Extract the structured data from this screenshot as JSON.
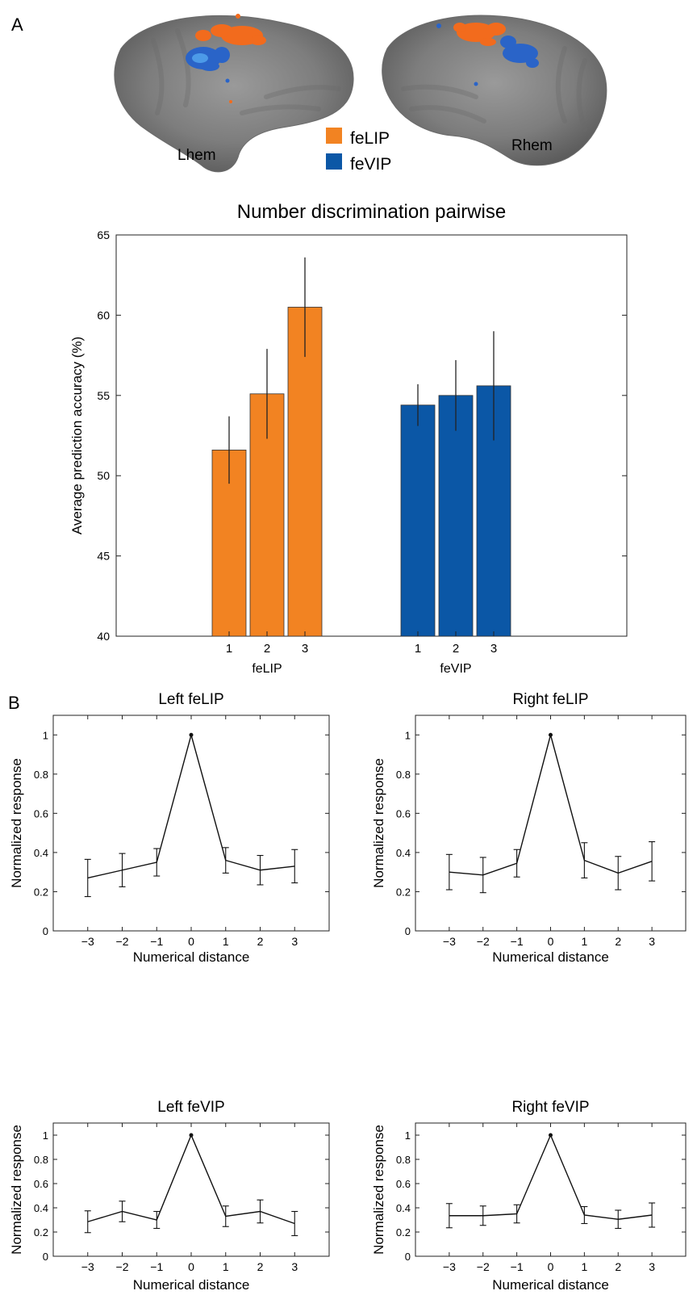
{
  "panels": {
    "a_label": "A",
    "b_label": "B"
  },
  "brain_figure": {
    "left_label": "Lhem",
    "right_label": "Rhem",
    "legend": [
      {
        "label": "feLIP",
        "color": "#f28322"
      },
      {
        "label": "feVIP",
        "color": "#0b57a6"
      }
    ]
  },
  "chart_data": [
    {
      "type": "bar",
      "title": "Number discrimination pairwise",
      "ylabel": "Average prediction accuracy (%)",
      "xlabel": "",
      "ylim": [
        40,
        65
      ],
      "yticks": [
        40,
        45,
        50,
        55,
        60,
        65
      ],
      "grid": false,
      "groups": [
        {
          "name": "feLIP",
          "color": "#f28322",
          "categories": [
            "1",
            "2",
            "3"
          ],
          "values": [
            51.6,
            55.1,
            60.5
          ],
          "error": [
            2.1,
            2.8,
            3.1
          ]
        },
        {
          "name": "feVIP",
          "color": "#0b57a6",
          "categories": [
            "1",
            "2",
            "3"
          ],
          "values": [
            54.4,
            55.0,
            55.6
          ],
          "error": [
            1.3,
            2.2,
            3.4
          ]
        }
      ]
    },
    {
      "type": "line",
      "title": "Left feLIP",
      "xlabel": "Numerical distance",
      "ylabel": "Normalized response",
      "xlim": [
        -4,
        4
      ],
      "ylim": [
        0,
        1.1
      ],
      "xticks": [
        -3,
        -2,
        -1,
        0,
        1,
        2,
        3
      ],
      "xtick_labels": [
        "−3",
        "−2",
        "−1",
        "0",
        "1",
        "2",
        "3"
      ],
      "yticks": [
        0,
        0.2,
        0.4,
        0.6,
        0.8,
        1
      ],
      "ytick_labels": [
        "0",
        "0.2",
        "0.4",
        "0.6",
        "0.8",
        "1"
      ],
      "x": [
        -3,
        -2,
        -1,
        0,
        1,
        2,
        3
      ],
      "y": [
        0.27,
        0.31,
        0.35,
        1.0,
        0.36,
        0.31,
        0.33
      ],
      "error": [
        0.095,
        0.085,
        0.07,
        0,
        0.065,
        0.075,
        0.085
      ]
    },
    {
      "type": "line",
      "title": "Right feLIP",
      "xlabel": "Numerical distance",
      "ylabel": "Normalized response",
      "xlim": [
        -4,
        4
      ],
      "ylim": [
        0,
        1.1
      ],
      "xticks": [
        -3,
        -2,
        -1,
        0,
        1,
        2,
        3
      ],
      "xtick_labels": [
        "−3",
        "−2",
        "−1",
        "0",
        "1",
        "2",
        "3"
      ],
      "yticks": [
        0,
        0.2,
        0.4,
        0.6,
        0.8,
        1
      ],
      "ytick_labels": [
        "0",
        "0.2",
        "0.4",
        "0.6",
        "0.8",
        "1"
      ],
      "x": [
        -3,
        -2,
        -1,
        0,
        1,
        2,
        3
      ],
      "y": [
        0.3,
        0.285,
        0.345,
        1.0,
        0.36,
        0.295,
        0.355
      ],
      "error": [
        0.09,
        0.09,
        0.07,
        0,
        0.09,
        0.085,
        0.1
      ]
    },
    {
      "type": "line",
      "title": "Left feVIP",
      "xlabel": "Numerical distance",
      "ylabel": "Normalized response",
      "xlim": [
        -4,
        4
      ],
      "ylim": [
        0,
        1.1
      ],
      "xticks": [
        -3,
        -2,
        -1,
        0,
        1,
        2,
        3
      ],
      "xtick_labels": [
        "−3",
        "−2",
        "−1",
        "0",
        "1",
        "2",
        "3"
      ],
      "yticks": [
        0,
        0.2,
        0.4,
        0.6,
        0.8,
        1
      ],
      "ytick_labels": [
        "0",
        "0.2",
        "0.4",
        "0.6",
        "0.8",
        "1"
      ],
      "x": [
        -3,
        -2,
        -1,
        0,
        1,
        2,
        3
      ],
      "y": [
        0.285,
        0.37,
        0.3,
        1.0,
        0.33,
        0.37,
        0.27
      ],
      "error": [
        0.09,
        0.085,
        0.07,
        0,
        0.085,
        0.095,
        0.1
      ]
    },
    {
      "type": "line",
      "title": "Right feVIP",
      "xlabel": "Numerical distance",
      "ylabel": "Normalized response",
      "xlim": [
        -4,
        4
      ],
      "ylim": [
        0,
        1.1
      ],
      "xticks": [
        -3,
        -2,
        -1,
        0,
        1,
        2,
        3
      ],
      "xtick_labels": [
        "−3",
        "−2",
        "−1",
        "0",
        "1",
        "2",
        "3"
      ],
      "yticks": [
        0,
        0.2,
        0.4,
        0.6,
        0.8,
        1
      ],
      "ytick_labels": [
        "0",
        "0.2",
        "0.4",
        "0.6",
        "0.8",
        "1"
      ],
      "x": [
        -3,
        -2,
        -1,
        0,
        1,
        2,
        3
      ],
      "y": [
        0.335,
        0.335,
        0.35,
        1.0,
        0.34,
        0.305,
        0.34
      ],
      "error": [
        0.1,
        0.08,
        0.075,
        0,
        0.07,
        0.075,
        0.1
      ]
    }
  ]
}
